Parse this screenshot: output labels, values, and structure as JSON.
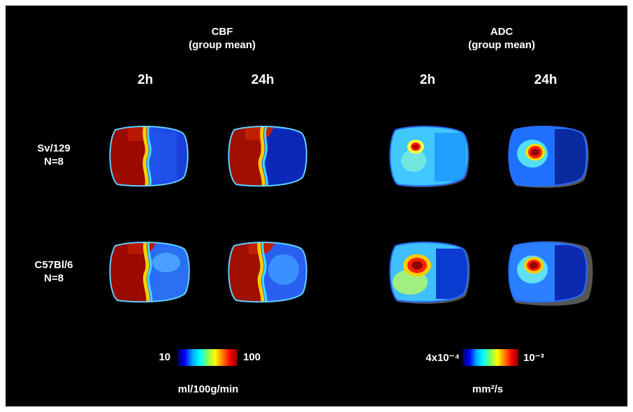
{
  "cbf": {
    "title": "CBF",
    "subtitle": "(group mean)",
    "time_2h": "2h",
    "time_24h": "24h",
    "scale_min": "10",
    "scale_max": "100",
    "unit": "ml/100g/min",
    "colorbar": [
      "#000060",
      "#0000ff",
      "#00aaff",
      "#00ffff",
      "#80ff60",
      "#ffff00",
      "#ff8000",
      "#ff0000",
      "#800000"
    ]
  },
  "adc": {
    "title": "ADC",
    "subtitle": "(group mean)",
    "time_2h": "2h",
    "time_24h": "24h",
    "scale_min": "4x10⁻⁴",
    "scale_max": "10⁻³",
    "unit": "mm²/s",
    "colorbar": [
      "#000060",
      "#0000ff",
      "#00aaff",
      "#00ffff",
      "#80ff60",
      "#ffff00",
      "#ff8000",
      "#ff0000",
      "#800000"
    ]
  },
  "rows": [
    {
      "strain": "Sv/129",
      "n": "N=8"
    },
    {
      "strain": "C57Bl/6",
      "n": "N=8"
    }
  ],
  "colors": {
    "background": "#000000",
    "text": "#ffffff",
    "lesion_cbf": "#9a0a00",
    "tissue": "#1a5cf0"
  }
}
